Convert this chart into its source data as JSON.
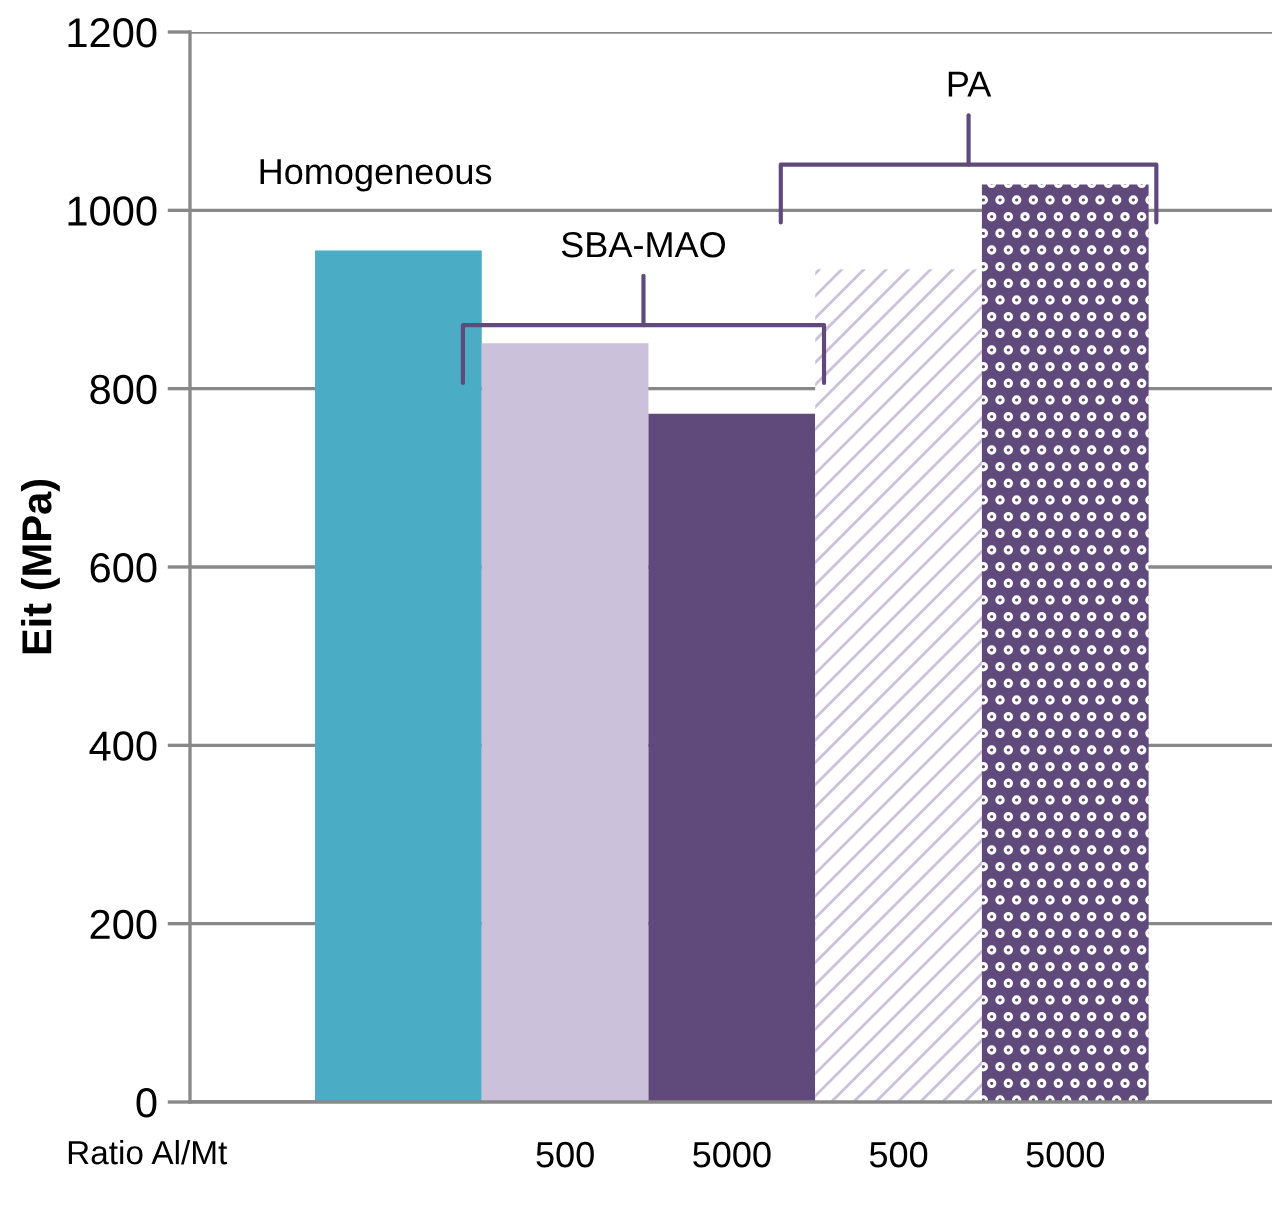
{
  "chart_data": {
    "type": "bar",
    "categories": [
      null,
      "500",
      "5000",
      "500",
      "5000"
    ],
    "values": [
      955,
      851,
      772,
      934,
      1029
    ],
    "colors": [
      "#4bacc6",
      "#ccc1da",
      "#604a7b",
      "#ccc1da",
      "#604a7b"
    ],
    "ylabel": "Eit (MPa)",
    "ylim": [
      0,
      1200
    ],
    "yticks": [
      0,
      200,
      400,
      600,
      800,
      1000,
      1200
    ],
    "grid": "y",
    "annotations": [
      "Homogeneous",
      "SBA-MAO",
      "PA",
      "Ratio Al/Mt"
    ]
  }
}
